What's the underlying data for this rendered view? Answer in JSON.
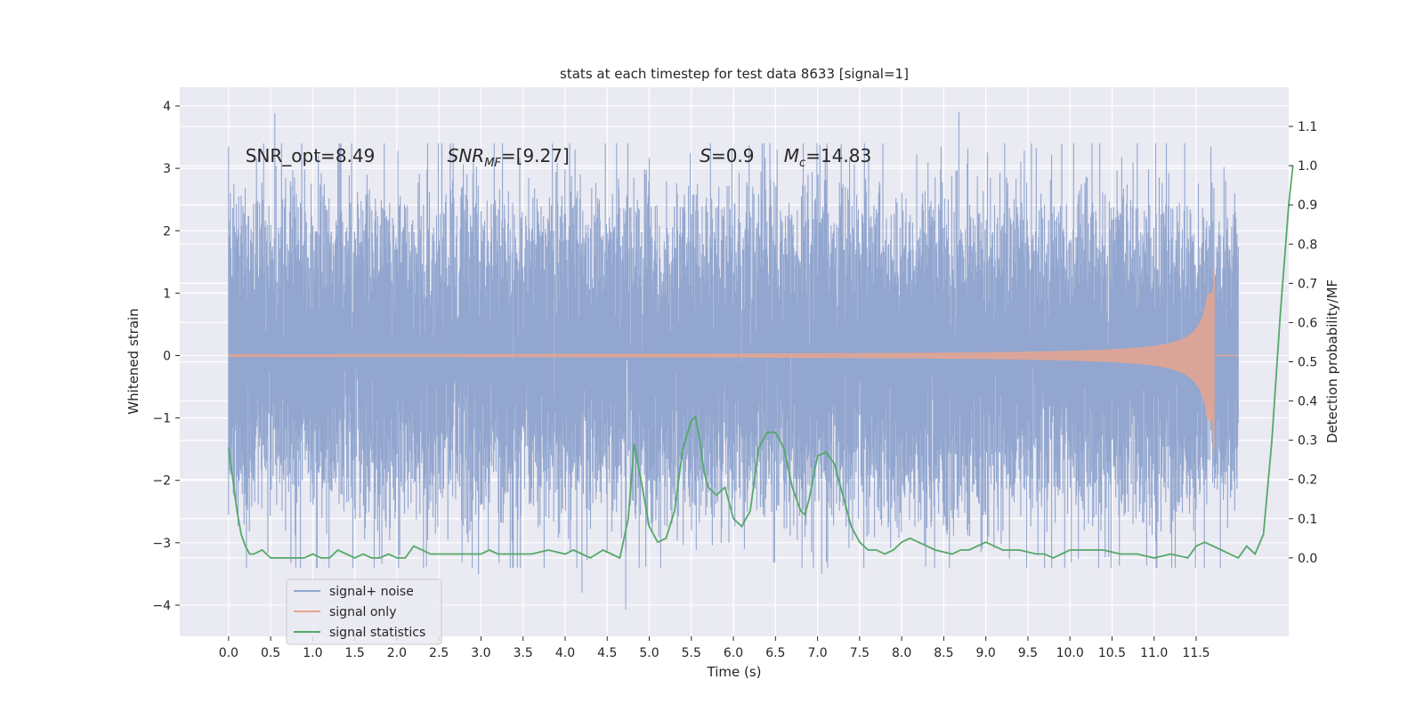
{
  "chart_data": {
    "type": "line",
    "title": "stats at each timestep for test data 8633 [signal=1]",
    "xlabel": "Time (s)",
    "ylabel_left": "Whitened strain",
    "ylabel_right": "Detection probability/MF",
    "xlim": [
      -0.58,
      12.6
    ],
    "ylim_left": [
      -4.5,
      4.3
    ],
    "ylim_right": [
      -0.2,
      1.2
    ],
    "x_ticks": [
      0.0,
      0.5,
      1.0,
      1.5,
      2.0,
      2.5,
      3.0,
      3.5,
      4.0,
      4.5,
      5.0,
      5.5,
      6.0,
      6.5,
      7.0,
      7.5,
      8.0,
      8.5,
      9.0,
      9.5,
      10.0,
      10.5,
      11.0,
      11.5
    ],
    "x_tick_labels": [
      "0.0",
      "0.5",
      "1.0",
      "1.5",
      "2.0",
      "2.5",
      "3.0",
      "3.5",
      "4.0",
      "4.5",
      "5.0",
      "5.5",
      "6.0",
      "6.5",
      "7.0",
      "7.5",
      "8.0",
      "8.5",
      "9.0",
      "9.5",
      "10.0",
      "10.5",
      "11.0",
      "11.5"
    ],
    "y_left_ticks": [
      -4,
      -3,
      -2,
      -1,
      0,
      1,
      2,
      3,
      4
    ],
    "y_left_tick_labels": [
      "−4",
      "−3",
      "−2",
      "−1",
      "0",
      "1",
      "2",
      "3",
      "4"
    ],
    "y_right_ticks": [
      0.0,
      0.1,
      0.2,
      0.3,
      0.4,
      0.5,
      0.6,
      0.7,
      0.8,
      0.9,
      1.0,
      1.1
    ],
    "y_right_tick_labels": [
      "0.0",
      "0.1",
      "0.2",
      "0.3",
      "0.4",
      "0.5",
      "0.6",
      "0.7",
      "0.8",
      "0.9",
      "1.0",
      "1.1"
    ],
    "grid": true,
    "legend_position": "lower-left",
    "series": [
      {
        "name": "signal+ noise",
        "axis": "left",
        "color": "#92a6cf",
        "t_range": [
          0.0,
          12.0
        ],
        "approx_envelope": [
          -2.4,
          2.4
        ],
        "notable_peaks": [
          [
            0.55,
            3.88
          ],
          [
            8.68,
            3.9
          ],
          [
            1.3,
            3.3
          ],
          [
            6.52,
            3.3
          ],
          [
            4.72,
            -4.07
          ],
          [
            4.2,
            -3.8
          ],
          [
            2.97,
            -3.5
          ],
          [
            7.05,
            -3.5
          ]
        ]
      },
      {
        "name": "signal only",
        "axis": "left",
        "color": "#e6a58e",
        "t_range": [
          0.0,
          12.0
        ],
        "merger_time": 11.72,
        "peak_amplitude_positive": 1.45,
        "peak_amplitude_negative": -1.6
      },
      {
        "name": "signal statistics",
        "axis": "right",
        "color": "#55a868",
        "points": [
          [
            0.0,
            0.28
          ],
          [
            0.05,
            0.2
          ],
          [
            0.1,
            0.12
          ],
          [
            0.15,
            0.06
          ],
          [
            0.2,
            0.03
          ],
          [
            0.25,
            0.01
          ],
          [
            0.3,
            0.01
          ],
          [
            0.4,
            0.02
          ],
          [
            0.5,
            0.0
          ],
          [
            0.6,
            0.0
          ],
          [
            0.7,
            0.0
          ],
          [
            0.8,
            0.0
          ],
          [
            0.9,
            0.0
          ],
          [
            1.0,
            0.01
          ],
          [
            1.1,
            0.0
          ],
          [
            1.2,
            0.0
          ],
          [
            1.3,
            0.02
          ],
          [
            1.4,
            0.01
          ],
          [
            1.5,
            0.0
          ],
          [
            1.6,
            0.01
          ],
          [
            1.7,
            0.0
          ],
          [
            1.8,
            0.0
          ],
          [
            1.9,
            0.01
          ],
          [
            2.0,
            0.0
          ],
          [
            2.1,
            0.0
          ],
          [
            2.2,
            0.03
          ],
          [
            2.3,
            0.02
          ],
          [
            2.4,
            0.01
          ],
          [
            2.5,
            0.01
          ],
          [
            2.6,
            0.01
          ],
          [
            2.8,
            0.01
          ],
          [
            3.0,
            0.01
          ],
          [
            3.1,
            0.02
          ],
          [
            3.2,
            0.01
          ],
          [
            3.4,
            0.01
          ],
          [
            3.6,
            0.01
          ],
          [
            3.8,
            0.02
          ],
          [
            4.0,
            0.01
          ],
          [
            4.1,
            0.02
          ],
          [
            4.2,
            0.01
          ],
          [
            4.3,
            0.0
          ],
          [
            4.45,
            0.02
          ],
          [
            4.55,
            0.01
          ],
          [
            4.65,
            0.0
          ],
          [
            4.75,
            0.1
          ],
          [
            4.82,
            0.29
          ],
          [
            4.9,
            0.2
          ],
          [
            5.0,
            0.08
          ],
          [
            5.1,
            0.04
          ],
          [
            5.2,
            0.05
          ],
          [
            5.3,
            0.12
          ],
          [
            5.4,
            0.28
          ],
          [
            5.5,
            0.35
          ],
          [
            5.55,
            0.36
          ],
          [
            5.6,
            0.3
          ],
          [
            5.65,
            0.22
          ],
          [
            5.7,
            0.18
          ],
          [
            5.8,
            0.16
          ],
          [
            5.9,
            0.18
          ],
          [
            6.0,
            0.1
          ],
          [
            6.1,
            0.08
          ],
          [
            6.2,
            0.12
          ],
          [
            6.3,
            0.28
          ],
          [
            6.4,
            0.32
          ],
          [
            6.5,
            0.32
          ],
          [
            6.6,
            0.28
          ],
          [
            6.7,
            0.18
          ],
          [
            6.8,
            0.12
          ],
          [
            6.85,
            0.11
          ],
          [
            6.9,
            0.15
          ],
          [
            7.0,
            0.26
          ],
          [
            7.1,
            0.27
          ],
          [
            7.2,
            0.24
          ],
          [
            7.3,
            0.16
          ],
          [
            7.4,
            0.08
          ],
          [
            7.5,
            0.04
          ],
          [
            7.6,
            0.02
          ],
          [
            7.7,
            0.02
          ],
          [
            7.8,
            0.01
          ],
          [
            7.9,
            0.02
          ],
          [
            8.0,
            0.04
          ],
          [
            8.1,
            0.05
          ],
          [
            8.2,
            0.04
          ],
          [
            8.4,
            0.02
          ],
          [
            8.6,
            0.01
          ],
          [
            8.7,
            0.02
          ],
          [
            8.8,
            0.02
          ],
          [
            8.9,
            0.03
          ],
          [
            9.0,
            0.04
          ],
          [
            9.1,
            0.03
          ],
          [
            9.2,
            0.02
          ],
          [
            9.4,
            0.02
          ],
          [
            9.6,
            0.01
          ],
          [
            9.7,
            0.01
          ],
          [
            9.8,
            0.0
          ],
          [
            9.9,
            0.01
          ],
          [
            10.0,
            0.02
          ],
          [
            10.2,
            0.02
          ],
          [
            10.4,
            0.02
          ],
          [
            10.6,
            0.01
          ],
          [
            10.8,
            0.01
          ],
          [
            11.0,
            0.0
          ],
          [
            11.2,
            0.01
          ],
          [
            11.4,
            0.0
          ],
          [
            11.5,
            0.03
          ],
          [
            11.6,
            0.04
          ],
          [
            11.7,
            0.03
          ],
          [
            11.8,
            0.02
          ],
          [
            11.9,
            0.01
          ],
          [
            12.0,
            0.0
          ],
          [
            12.1,
            0.03
          ],
          [
            12.2,
            0.01
          ],
          [
            12.3,
            0.06
          ],
          [
            12.4,
            0.3
          ],
          [
            12.5,
            0.62
          ],
          [
            12.6,
            0.9
          ],
          [
            12.65,
            1.0
          ]
        ]
      }
    ],
    "annotations": {
      "snr_opt": {
        "text": "SNR_opt=8.49",
        "x": 0.2,
        "y": 3.1
      },
      "snr_mf": {
        "prefix": "SNR",
        "sub": "MF",
        "suffix": "=[9.27]",
        "x": 2.6,
        "y": 3.1
      },
      "s": {
        "italic": "S",
        "suffix": "=0.9",
        "x": 5.6,
        "y": 3.1
      },
      "mc": {
        "italic": "M",
        "sub": "c",
        "suffix": "=14.83",
        "x": 6.6,
        "y": 3.1
      }
    }
  }
}
